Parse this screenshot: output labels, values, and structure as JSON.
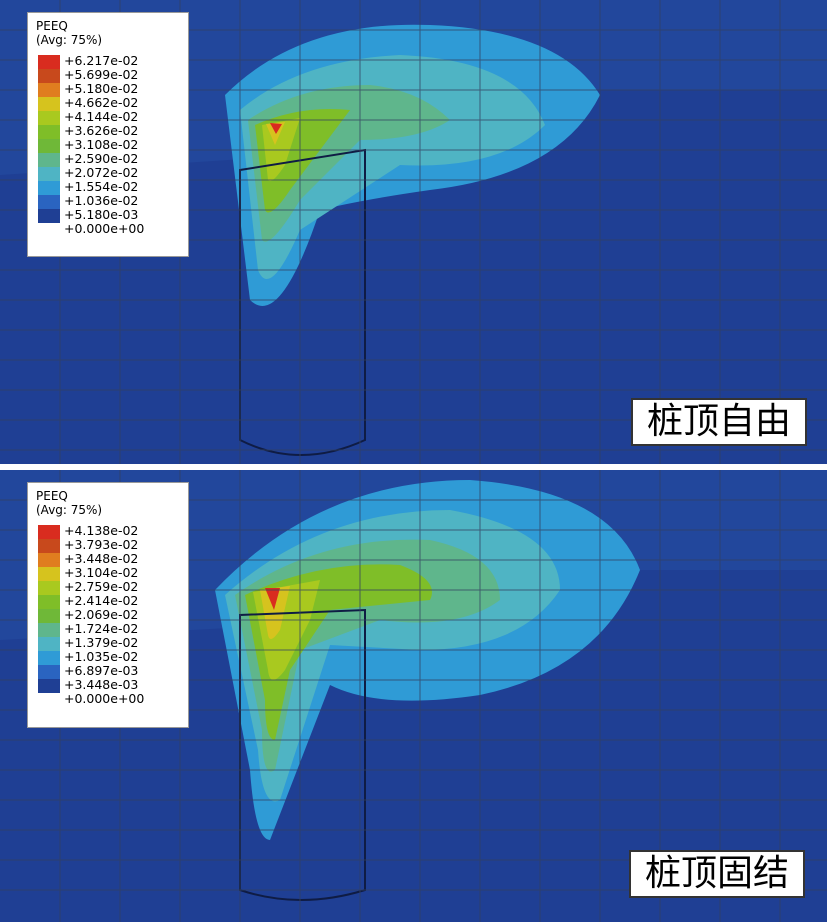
{
  "panels": [
    {
      "legend_title": "PEEQ",
      "legend_subtitle": "(Avg: 75%)",
      "legend_values": [
        "+6.217e-02",
        "+5.699e-02",
        "+5.180e-02",
        "+4.662e-02",
        "+4.144e-02",
        "+3.626e-02",
        "+3.108e-02",
        "+2.590e-02",
        "+2.072e-02",
        "+1.554e-02",
        "+1.036e-02",
        "+5.180e-03",
        "+0.000e+00"
      ],
      "caption": "桩顶自由"
    },
    {
      "legend_title": "PEEQ",
      "legend_subtitle": "(Avg: 75%)",
      "legend_values": [
        "+4.138e-02",
        "+3.793e-02",
        "+3.448e-02",
        "+3.104e-02",
        "+2.759e-02",
        "+2.414e-02",
        "+2.069e-02",
        "+1.724e-02",
        "+1.379e-02",
        "+1.035e-02",
        "+6.897e-03",
        "+3.448e-03",
        "+0.000e+00"
      ],
      "caption": "桩顶固结"
    }
  ],
  "colors": {
    "legend_swatches": [
      "#d92c1f",
      "#c8491c",
      "#e07d1f",
      "#d6c31e",
      "#a9c91f",
      "#7fbe28",
      "#6fb838",
      "#5fb68c",
      "#4fb4c4",
      "#2f9bd6",
      "#2a64c0",
      "#1f3f94"
    ],
    "background": "#1f3f94",
    "mesh": "#33405f"
  }
}
